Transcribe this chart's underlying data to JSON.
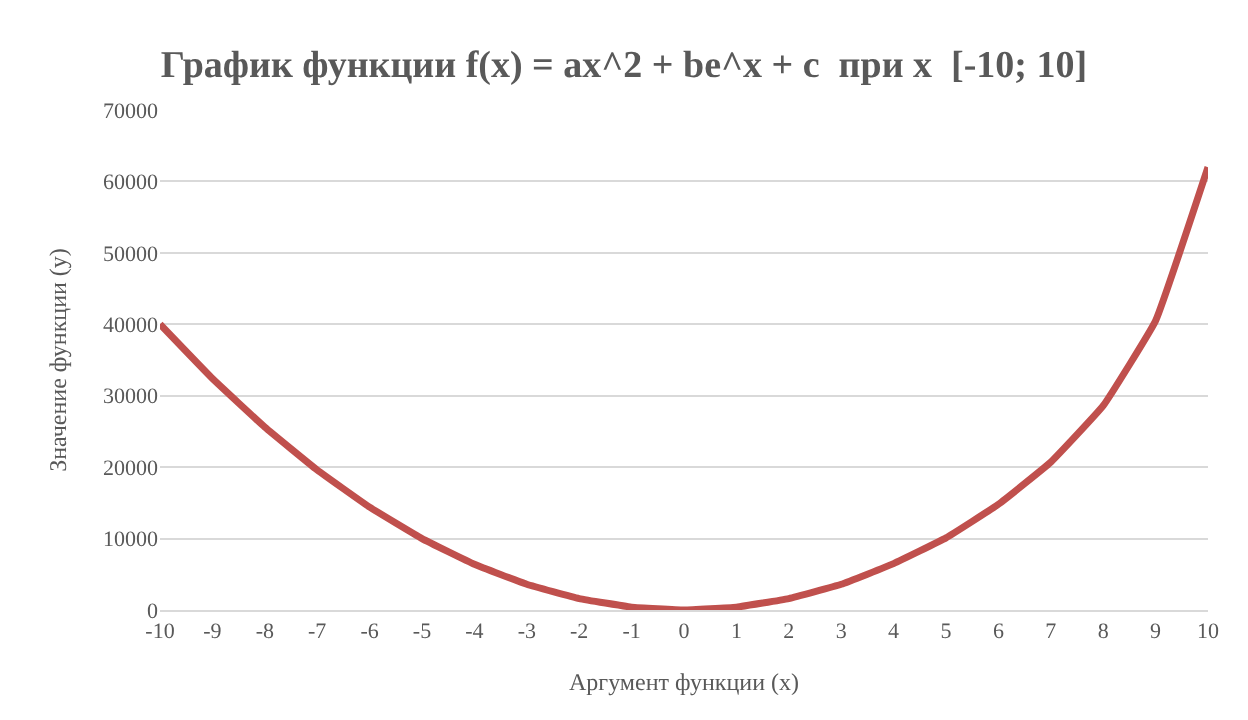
{
  "chart_data": {
    "type": "line",
    "title": "График функции f(x) = ax^2 + be^x + c  при x  [-10; 10]",
    "xlabel": "Аргумент функции (x)",
    "ylabel": "Значение функции (y)",
    "categories": [
      "-10",
      "-9",
      "-8",
      "-7",
      "-6",
      "-5",
      "-4",
      "-3",
      "-2",
      "-1",
      "0",
      "1",
      "2",
      "3",
      "4",
      "5",
      "6",
      "7",
      "8",
      "9",
      "10"
    ],
    "series": [
      {
        "color": "#c0504d",
        "values": [
          40000,
          32400,
          25600,
          19600,
          14400,
          10000,
          6400,
          3600,
          1600,
          400,
          0,
          400,
          1600,
          3600,
          6500,
          10100,
          14800,
          20700,
          28600,
          40500,
          62000
        ]
      }
    ],
    "ylim": [
      0,
      70000
    ],
    "yticks": [
      0,
      10000,
      20000,
      30000,
      40000,
      50000,
      60000,
      70000
    ],
    "grid": "y",
    "legend": false,
    "marker": "none",
    "line_style": "solid"
  }
}
